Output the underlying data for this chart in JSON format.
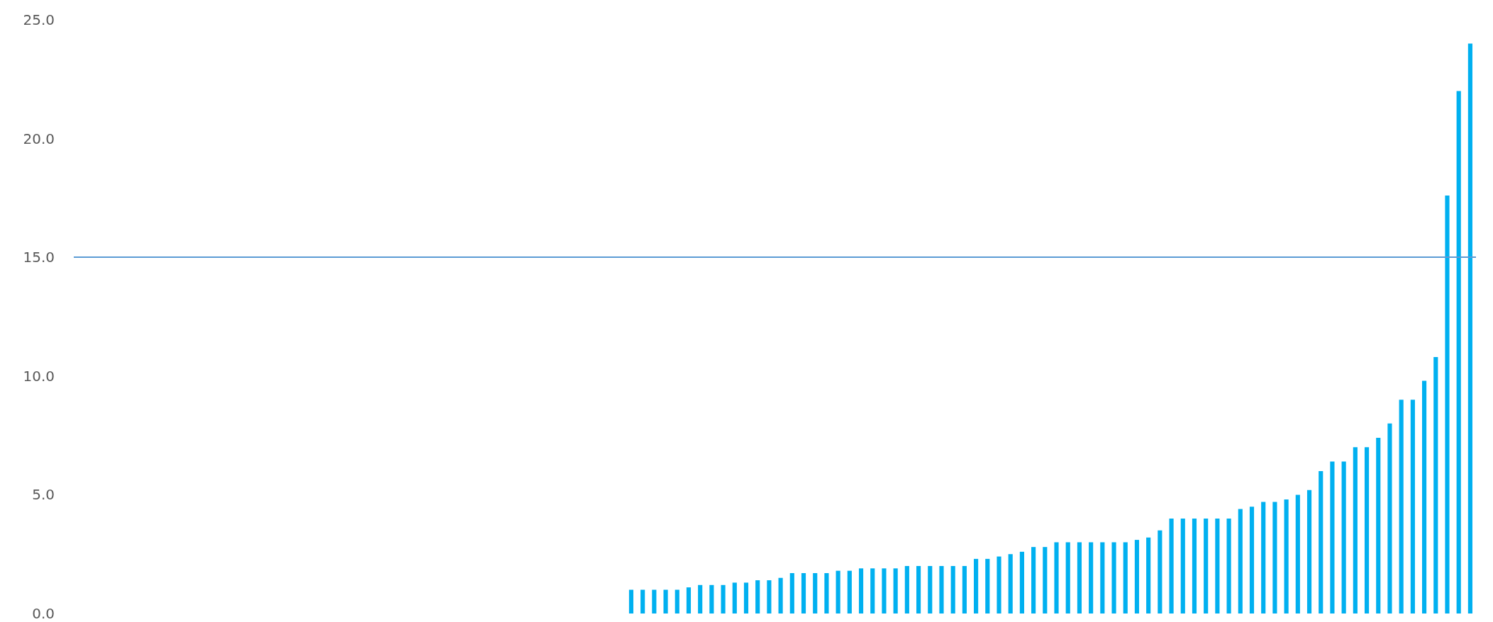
{
  "chart_data": {
    "type": "bar",
    "categories": [
      null,
      null,
      null,
      null,
      null,
      null,
      null,
      null,
      null,
      null,
      null,
      null,
      null,
      null,
      null,
      null,
      null,
      null,
      null,
      null,
      null,
      null,
      null,
      null,
      null,
      null,
      null,
      null,
      null,
      null,
      null,
      null,
      null,
      null,
      null,
      null,
      null,
      null,
      null,
      null,
      null,
      null,
      null,
      null,
      null,
      null,
      null,
      null,
      null,
      null,
      null,
      null,
      null,
      null,
      null,
      null,
      null,
      null,
      null,
      null,
      null,
      null,
      null,
      null,
      null,
      null,
      null,
      null,
      null,
      null,
      null,
      null,
      null,
      null,
      null,
      null,
      null,
      null,
      null,
      null,
      null,
      null,
      null,
      null,
      null,
      null,
      null,
      null,
      null,
      null,
      null,
      null,
      null,
      null,
      null,
      null,
      null,
      null,
      null,
      null,
      null,
      null,
      null,
      null,
      null,
      null,
      null,
      null,
      null,
      null,
      null,
      null,
      null,
      null,
      null,
      null,
      null,
      null,
      null,
      null,
      null,
      null
    ],
    "values": [
      null,
      null,
      null,
      null,
      null,
      null,
      null,
      null,
      null,
      null,
      null,
      null,
      null,
      null,
      null,
      null,
      null,
      null,
      null,
      null,
      null,
      null,
      null,
      null,
      null,
      null,
      null,
      null,
      null,
      null,
      null,
      null,
      null,
      null,
      null,
      null,
      null,
      null,
      null,
      null,
      null,
      null,
      null,
      null,
      null,
      null,
      null,
      null,
      1.0,
      1.0,
      1.0,
      1.0,
      1.0,
      1.1,
      1.2,
      1.2,
      1.2,
      1.3,
      1.3,
      1.4,
      1.4,
      1.5,
      1.7,
      1.7,
      1.7,
      1.7,
      1.8,
      1.8,
      1.9,
      1.9,
      1.9,
      1.9,
      2.0,
      2.0,
      2.0,
      2.0,
      2.0,
      2.0,
      2.3,
      2.3,
      2.4,
      2.5,
      2.6,
      2.8,
      2.8,
      3.0,
      3.0,
      3.0,
      3.0,
      3.0,
      3.0,
      3.0,
      3.1,
      3.2,
      3.5,
      4.0,
      4.0,
      4.0,
      4.0,
      4.0,
      4.0,
      4.4,
      4.5,
      4.7,
      4.7,
      4.8,
      5.0,
      5.2,
      6.0,
      6.4,
      6.4,
      7.0,
      7.0,
      7.4,
      8.0,
      9.0,
      9.0,
      9.8,
      10.8,
      17.6,
      22.0,
      24.0
    ],
    "color": "#00b0f0",
    "ylim": [
      0,
      25
    ],
    "yticks": [
      {
        "value": 0,
        "label": "0.0"
      },
      {
        "value": 5,
        "label": "5.0"
      },
      {
        "value": 10,
        "label": "10.0"
      },
      {
        "value": 15,
        "label": "15.0"
      },
      {
        "value": 20,
        "label": "20.0"
      },
      {
        "value": 25,
        "label": "25.0"
      }
    ],
    "ref_lines": [
      {
        "axis": "y",
        "value": 15,
        "color": "#5b9bd5"
      }
    ],
    "grid": false
  }
}
